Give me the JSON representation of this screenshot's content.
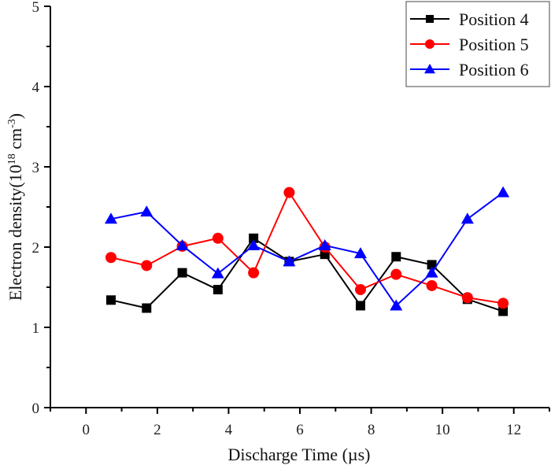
{
  "chart_data": {
    "type": "line",
    "title": "",
    "xlabel": "Discharge Time (µs)",
    "ylabel_main": "Electron density(10",
    "ylabel_sup1": "18",
    "ylabel_mid": " cm",
    "ylabel_sup2": "-3",
    "ylabel_end": ")",
    "xlim": [
      -1,
      13
    ],
    "ylim": [
      0,
      5
    ],
    "xticks": [
      0,
      2,
      4,
      6,
      8,
      10,
      12
    ],
    "xticks_minor": [
      -1,
      1,
      3,
      5,
      7,
      9,
      11,
      13
    ],
    "yticks": [
      0,
      1,
      2,
      3,
      4,
      5
    ],
    "yticks_minor": [
      0.5,
      1.5,
      2.5,
      3.5,
      4.5
    ],
    "grid": false,
    "legend_position": "top-right",
    "x": [
      0.7,
      1.7,
      2.7,
      3.7,
      4.7,
      5.7,
      6.7,
      7.7,
      8.7,
      9.7,
      10.7,
      11.7
    ],
    "series": [
      {
        "name": "Position 4",
        "color": "#000000",
        "marker": "square",
        "values": [
          1.34,
          1.24,
          1.68,
          1.47,
          2.11,
          1.82,
          1.91,
          1.27,
          1.88,
          1.78,
          1.35,
          1.2
        ]
      },
      {
        "name": "Position 5",
        "color": "#ff0000",
        "marker": "circle",
        "values": [
          1.87,
          1.77,
          2.01,
          2.11,
          1.68,
          2.68,
          2.0,
          1.47,
          1.66,
          1.52,
          1.37,
          1.3
        ]
      },
      {
        "name": "Position 6",
        "color": "#0000ff",
        "marker": "triangle",
        "values": [
          2.35,
          2.44,
          2.02,
          1.67,
          2.02,
          1.82,
          2.02,
          1.92,
          1.27,
          1.68,
          2.35,
          2.68
        ]
      }
    ]
  }
}
